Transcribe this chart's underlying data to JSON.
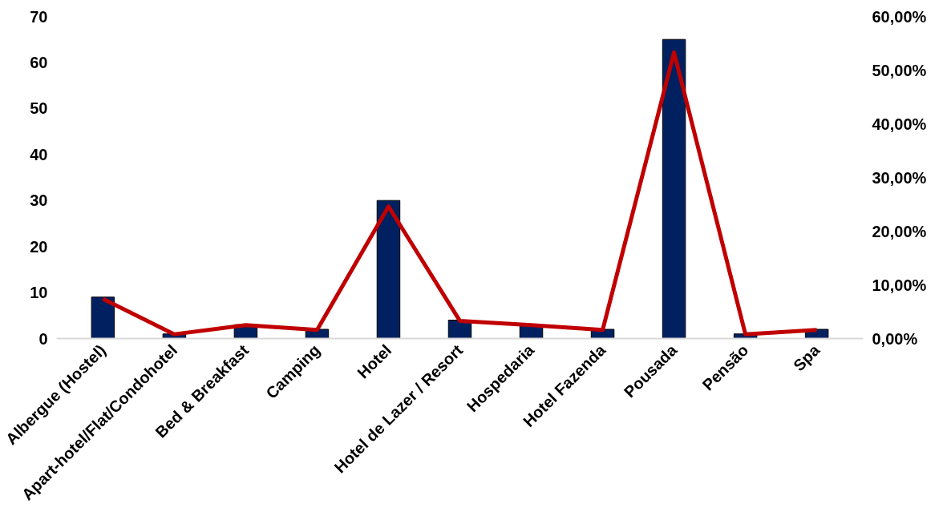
{
  "chart_data": {
    "type": "bar",
    "categories": [
      "Albergue (Hostel)",
      "Apart-hotel/Flat/Condohotel",
      "Bed & Breakfast",
      "Camping",
      "Hotel",
      "Hotel de Lazer / Resort",
      "Hospedaria",
      "Hotel Fazenda",
      "Pousada",
      "Pensão",
      "Spa"
    ],
    "series": [
      {
        "color": "#002060",
        "values": [
          9,
          1,
          3,
          2,
          30,
          4,
          3,
          2,
          65,
          1,
          2
        ]
      },
      {
        "type": "line",
        "axis": "y2",
        "color": "#c00000",
        "values": [
          7.4,
          0.8,
          2.5,
          1.6,
          24.6,
          3.3,
          2.5,
          1.6,
          53.3,
          0.8,
          1.6
        ]
      }
    ],
    "ylim": [
      0,
      70
    ],
    "yticks": [
      0,
      10,
      20,
      30,
      40,
      50,
      60,
      70
    ],
    "y2lim": [
      0,
      60
    ],
    "y2ticks": [
      {
        "value": 0,
        "label": "0,00%"
      },
      {
        "value": 10,
        "label": "10,00%"
      },
      {
        "value": 20,
        "label": "20,00%"
      },
      {
        "value": 30,
        "label": "30,00%"
      },
      {
        "value": 40,
        "label": "40,00%"
      },
      {
        "value": 50,
        "label": "50,00%"
      },
      {
        "value": 60,
        "label": "60,00%"
      }
    ],
    "grid": false,
    "marker": "none",
    "line_style": "solid"
  }
}
